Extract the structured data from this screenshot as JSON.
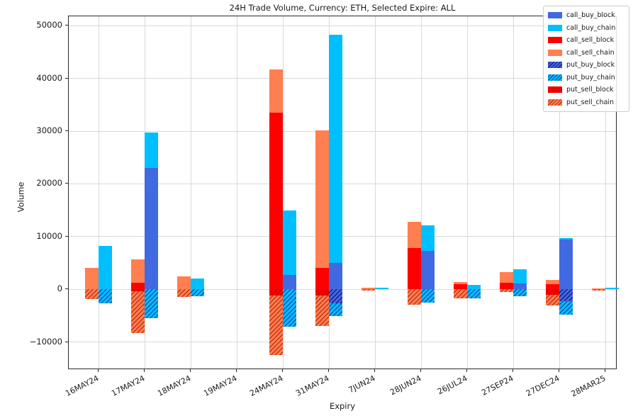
{
  "chart_data": {
    "type": "bar",
    "stacked": true,
    "title": "24H Trade Volume, Currency: ETH, Selected Expire: ALL",
    "xlabel": "Expiry",
    "ylabel": "Volume",
    "ylim": [
      -15300,
      51800
    ],
    "y_ticks": [
      -10000,
      0,
      10000,
      20000,
      30000,
      40000,
      50000
    ],
    "grid": true,
    "legend_position": "upper right",
    "categories": [
      "16MAY24",
      "17MAY24",
      "18MAY24",
      "19MAY24",
      "24MAY24",
      "31MAY24",
      "7JUN24",
      "28JUN24",
      "26JUL24",
      "27SEP24",
      "27DEC24",
      "28MAR25"
    ],
    "series": [
      {
        "name": "call_buy_block",
        "side": "buy",
        "color": "#4169e1",
        "hatch": false,
        "hatch_color": "",
        "values": [
          0,
          23000,
          0,
          0,
          2700,
          5000,
          0,
          7300,
          0,
          1100,
          9400,
          0
        ]
      },
      {
        "name": "call_buy_chain",
        "side": "buy",
        "color": "#00bfff",
        "hatch": false,
        "hatch_color": "",
        "values": [
          8200,
          6800,
          2000,
          0,
          12300,
          43300,
          300,
          4800,
          900,
          2700,
          300,
          300
        ]
      },
      {
        "name": "call_sell_block",
        "side": "sell",
        "color": "#ff0000",
        "hatch": false,
        "hatch_color": "",
        "values": [
          0,
          1300,
          0,
          0,
          33500,
          4000,
          0,
          7800,
          1000,
          1300,
          1000,
          0
        ]
      },
      {
        "name": "call_sell_chain",
        "side": "sell",
        "color": "#ff7f50",
        "hatch": false,
        "hatch_color": "",
        "values": [
          4100,
          4400,
          2500,
          0,
          8200,
          26200,
          300,
          5000,
          400,
          1900,
          800,
          200
        ]
      },
      {
        "name": "put_buy_block",
        "side": "buy",
        "color": "#4169e1",
        "hatch": true,
        "hatch_color": "rgba(16,16,120,0.85)",
        "values": [
          0,
          0,
          0,
          0,
          0,
          -2700,
          0,
          0,
          0,
          0,
          -2200,
          0
        ]
      },
      {
        "name": "put_buy_chain",
        "side": "buy",
        "color": "#00bfff",
        "hatch": true,
        "hatch_color": "rgba(25,60,170,0.85)",
        "values": [
          -2700,
          -5500,
          -1300,
          0,
          -7100,
          -2400,
          0,
          -2500,
          -1700,
          -1300,
          -2600,
          0
        ]
      },
      {
        "name": "put_sell_block",
        "side": "sell",
        "color": "#ff0000",
        "hatch": true,
        "hatch_color": "rgba(150,0,0,0.5)",
        "values": [
          0,
          -400,
          0,
          0,
          -1200,
          -1200,
          0,
          0,
          0,
          0,
          -1000,
          0
        ]
      },
      {
        "name": "put_sell_chain",
        "side": "sell",
        "color": "#ff7f50",
        "hatch": true,
        "hatch_color": "rgba(190,35,10,0.85)",
        "values": [
          -1900,
          -7900,
          -1500,
          0,
          -11300,
          -5800,
          -200,
          -2900,
          -1700,
          -500,
          -2000,
          -200
        ]
      }
    ]
  }
}
